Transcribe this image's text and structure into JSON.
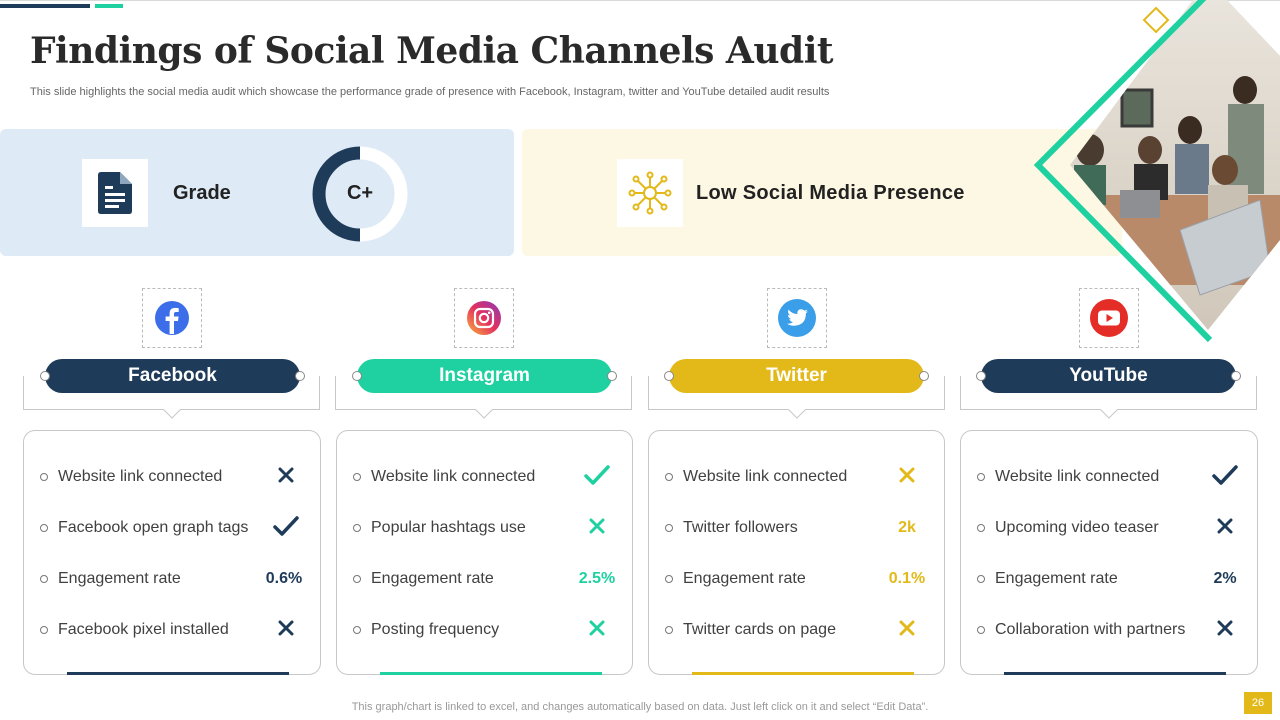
{
  "header": {
    "title": "Findings of Social Media Channels Audit",
    "subtitle": "This slide highlights the social media audit which showcase the performance grade of presence with Facebook, Instagram, twitter and YouTube detailed audit results"
  },
  "summary": {
    "grade_label": "Grade",
    "grade_value": "C+",
    "grade_icon": "document-icon",
    "presence_label": "Low Social Media Presence",
    "presence_icon": "network-icon"
  },
  "colors": {
    "navy": "#1f3b5a",
    "green": "#1fd1a0",
    "yellow": "#e3b91a",
    "grade_panel": "#deeaf5",
    "presence_panel": "#fdf8e3"
  },
  "channels": [
    {
      "name": "Facebook",
      "icon": "facebook-icon",
      "color": "#1f3b5a",
      "rows": [
        {
          "label": "Website link connected",
          "status": "cross"
        },
        {
          "label": "Facebook open graph tags",
          "status": "check"
        },
        {
          "label": "Engagement rate",
          "value": "0.6%"
        },
        {
          "label": "Facebook pixel installed",
          "status": "cross"
        }
      ]
    },
    {
      "name": "Instagram",
      "icon": "instagram-icon",
      "color": "#1fd1a0",
      "rows": [
        {
          "label": "Website link connected",
          "status": "check"
        },
        {
          "label": "Popular hashtags use",
          "status": "cross"
        },
        {
          "label": "Engagement rate",
          "value": "2.5%"
        },
        {
          "label": "Posting frequency",
          "status": "cross"
        }
      ]
    },
    {
      "name": "Twitter",
      "icon": "twitter-icon",
      "color": "#e3b91a",
      "rows": [
        {
          "label": "Website link connected",
          "status": "cross"
        },
        {
          "label": "Twitter followers",
          "value": "2k"
        },
        {
          "label": "Engagement rate",
          "value": "0.1%"
        },
        {
          "label": "Twitter cards on page",
          "status": "cross"
        }
      ]
    },
    {
      "name": "YouTube",
      "icon": "youtube-icon",
      "color": "#1f3b5a",
      "rows": [
        {
          "label": "Website link connected",
          "status": "check"
        },
        {
          "label": "Upcoming video teaser",
          "status": "cross"
        },
        {
          "label": "Engagement rate",
          "value": "2%"
        },
        {
          "label": "Collaboration with partners",
          "status": "cross"
        }
      ]
    }
  ],
  "footer": {
    "note": "This graph/chart is linked to excel, and changes automatically based on data. Just left click on it and select “Edit Data”.",
    "page_number": "26"
  }
}
